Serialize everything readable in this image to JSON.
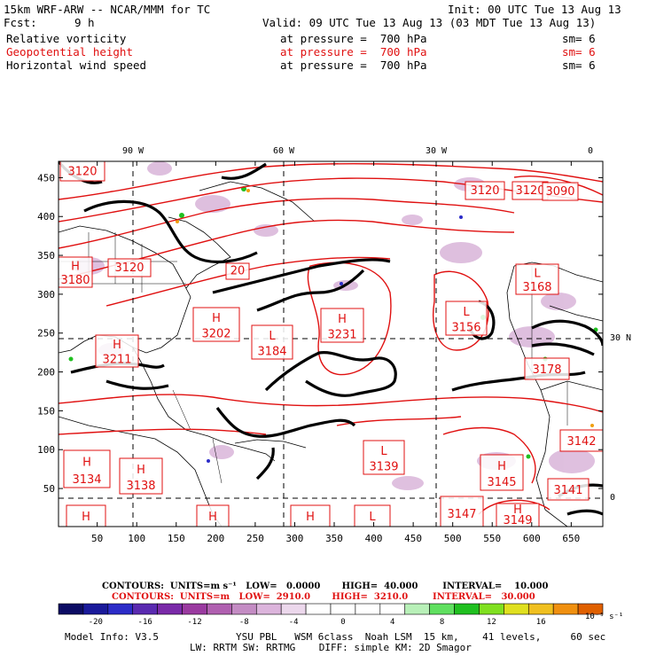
{
  "header": {
    "model_line": "15km WRF-ARW -- NCAR/MMM for TC",
    "init": "Init: 00 UTC Tue 13 Aug 13",
    "fcst_label": "Fcst:",
    "fcst_value": "9 h",
    "valid": "Valid: 09 UTC Tue 13 Aug 13 (03 MDT Tue 13 Aug 13)"
  },
  "fields": [
    {
      "name": "Relative vorticity",
      "level": "at pressure =  700 hPa",
      "smooth": "sm= 6",
      "color": "#000000"
    },
    {
      "name": "Geopotential height",
      "level": "at pressure =  700 hPa",
      "smooth": "sm= 6",
      "color": "#e01010"
    },
    {
      "name": "Horizontal wind speed",
      "level": "at pressure =  700 hPa",
      "smooth": "sm= 6",
      "color": "#000000"
    }
  ],
  "map": {
    "top_longitudes": [
      "90 W",
      "60 W",
      "30 W",
      "0"
    ],
    "right_latitudes": [
      "30 N",
      "0"
    ],
    "x_ticks": [
      "50",
      "100",
      "150",
      "200",
      "250",
      "300",
      "350",
      "400",
      "450",
      "500",
      "550",
      "600",
      "650"
    ],
    "y_ticks": [
      "450",
      "400",
      "350",
      "300",
      "250",
      "200",
      "150",
      "100",
      "50"
    ],
    "highs_lows": [
      {
        "t": "",
        "v": "3120"
      },
      {
        "t": "",
        "v": "3120"
      },
      {
        "t": "",
        "v": "3120"
      },
      {
        "t": "H",
        "v": "3180"
      },
      {
        "t": "",
        "v": "20"
      },
      {
        "t": "",
        "v": "3120"
      },
      {
        "t": "",
        "v": "3090"
      },
      {
        "t": "L",
        "v": "3168"
      },
      {
        "t": "H",
        "v": "3202"
      },
      {
        "t": "L",
        "v": "3184"
      },
      {
        "t": "H",
        "v": "3231"
      },
      {
        "t": "L",
        "v": "3156"
      },
      {
        "t": "H",
        "v": "3211"
      },
      {
        "t": "",
        "v": "3178"
      },
      {
        "t": "L",
        "v": "3139"
      },
      {
        "t": "H",
        "v": "3134"
      },
      {
        "t": "H",
        "v": "3138"
      },
      {
        "t": "H",
        "v": "3145"
      },
      {
        "t": "",
        "v": "3142"
      },
      {
        "t": "",
        "v": "3141"
      },
      {
        "t": "H",
        "v": ""
      },
      {
        "t": "H",
        "v": ""
      },
      {
        "t": "H",
        "v": ""
      },
      {
        "t": "L",
        "v": ""
      },
      {
        "t": "",
        "v": "3147"
      },
      {
        "t": "H",
        "v": "3149"
      }
    ]
  },
  "contours": {
    "line1": "CONTOURS:  UNITS=m s⁻¹   LOW=   0.0000       HIGH=  40.000        INTERVAL=    10.000",
    "line2": "CONTOURS:  UNITS=m   LOW=  2910.0       HIGH=  3210.0        INTERVAL=   30.000",
    "line1_color": "#000000",
    "line2_color": "#e01010"
  },
  "colorbar": {
    "labels": [
      "-20",
      "-16",
      "-12",
      "-8",
      "-4",
      "0",
      "4",
      "8",
      "12",
      "16"
    ],
    "unit": "10⁻⁵ s⁻¹",
    "colors": [
      "#0c0c64",
      "#1a1a9a",
      "#2c2cc8",
      "#5a2ab0",
      "#7a2aa8",
      "#9a3aa0",
      "#b060b0",
      "#c48cc4",
      "#dcb4dc",
      "#ecd8ec",
      "#ffffff",
      "#ffffff",
      "#ffffff",
      "#ffffff",
      "#b8f0b8",
      "#60e060",
      "#20c020",
      "#80e020",
      "#e0e020",
      "#f0c020",
      "#f09010",
      "#e06000"
    ]
  },
  "footer": {
    "model_info": "Model Info: V3.5",
    "line1": "YSU PBL   WSM 6class  Noah LSM  15 km,    41 levels,     60 sec",
    "line2": "LW: RRTM SW: RRTMG    DIFF: simple KM: 2D Smagor"
  }
}
